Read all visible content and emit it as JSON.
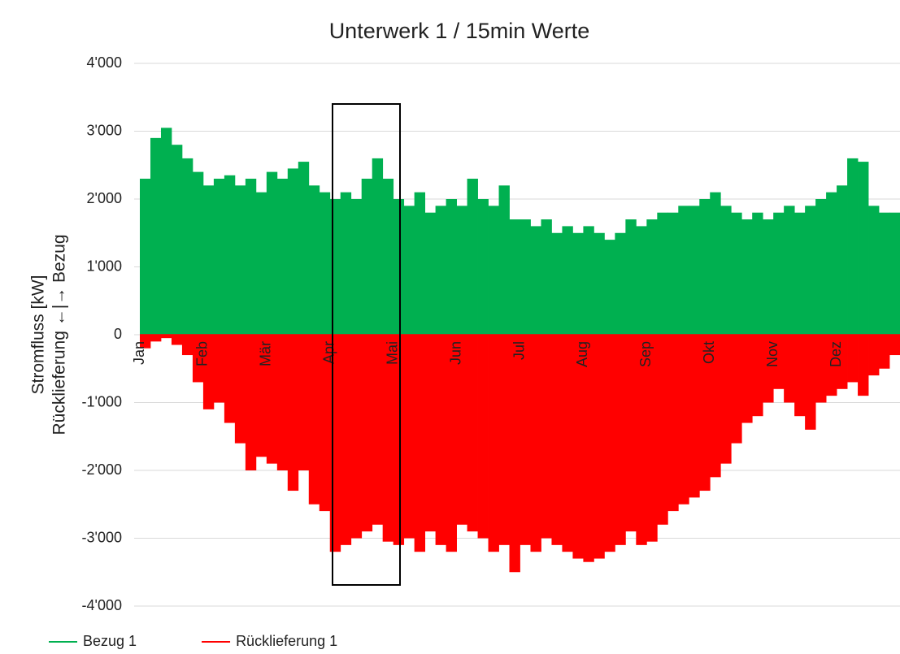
{
  "chart_data": {
    "type": "bar",
    "title": "Unterwerk 1 / 15min Werte",
    "y_label_lines": [
      "Stromfluss [kW]",
      "Rücklieferung ←|→ Bezug"
    ],
    "categories": [
      "Jan",
      null,
      null,
      null,
      null,
      null,
      "Feb",
      null,
      null,
      null,
      null,
      null,
      "Mär",
      null,
      null,
      null,
      null,
      null,
      "Apr",
      null,
      null,
      null,
      null,
      null,
      "Mai",
      null,
      null,
      null,
      null,
      null,
      "Jun",
      null,
      null,
      null,
      null,
      null,
      "Jul",
      null,
      null,
      null,
      null,
      null,
      "Aug",
      null,
      null,
      null,
      null,
      null,
      "Sep",
      null,
      null,
      null,
      null,
      null,
      "Okt",
      null,
      null,
      null,
      null,
      null,
      "Nov",
      null,
      null,
      null,
      null,
      null,
      "Dez",
      null,
      null,
      null,
      null,
      null
    ],
    "series": [
      {
        "name": "Bezug 1",
        "color": "#00b050",
        "values": [
          2300,
          2900,
          3050,
          2800,
          2600,
          2400,
          2200,
          2300,
          2350,
          2200,
          2300,
          2100,
          2400,
          2300,
          2450,
          2550,
          2200,
          2100,
          2000,
          2100,
          2000,
          2300,
          2600,
          2300,
          2000,
          1900,
          2100,
          1800,
          1900,
          2000,
          1900,
          2300,
          2000,
          1900,
          2200,
          1700,
          1700,
          1600,
          1700,
          1500,
          1600,
          1500,
          1600,
          1500,
          1400,
          1500,
          1700,
          1600,
          1700,
          1800,
          1800,
          1900,
          1900,
          2000,
          2100,
          1900,
          1800,
          1700,
          1800,
          1700,
          1800,
          1900,
          1800,
          1900,
          2000,
          2100,
          2200,
          2600,
          2550,
          1900,
          1800,
          1800
        ]
      },
      {
        "name": "Rücklieferung 1",
        "color": "#ff0000",
        "values": [
          -200,
          -100,
          -50,
          -150,
          -300,
          -700,
          -1100,
          -1000,
          -1300,
          -1600,
          -2000,
          -1800,
          -1900,
          -2000,
          -2300,
          -2000,
          -2500,
          -2600,
          -3200,
          -3100,
          -3000,
          -2900,
          -2800,
          -3050,
          -3100,
          -3000,
          -3200,
          -2900,
          -3100,
          -3200,
          -2800,
          -2900,
          -3000,
          -3200,
          -3100,
          -3500,
          -3100,
          -3200,
          -3000,
          -3100,
          -3200,
          -3300,
          -3350,
          -3300,
          -3200,
          -3100,
          -2900,
          -3100,
          -3050,
          -2800,
          -2600,
          -2500,
          -2400,
          -2300,
          -2100,
          -1900,
          -1600,
          -1300,
          -1200,
          -1000,
          -800,
          -1000,
          -1200,
          -1400,
          -1000,
          -900,
          -800,
          -700,
          -900,
          -600,
          -500,
          -300
        ]
      }
    ],
    "ylim": [
      -4000,
      4000
    ],
    "yticks": [
      {
        "value": -4000,
        "label": "-4'000"
      },
      {
        "value": -3000,
        "label": "-3'000"
      },
      {
        "value": -2000,
        "label": "-2'000"
      },
      {
        "value": -1000,
        "label": "-1'000"
      },
      0,
      {
        "value": 1000,
        "label": "1'000"
      },
      {
        "value": 2000,
        "label": "2'000"
      },
      {
        "value": 3000,
        "label": "3'000"
      },
      {
        "value": 4000,
        "label": "4'000"
      }
    ],
    "grid": true
  }
}
